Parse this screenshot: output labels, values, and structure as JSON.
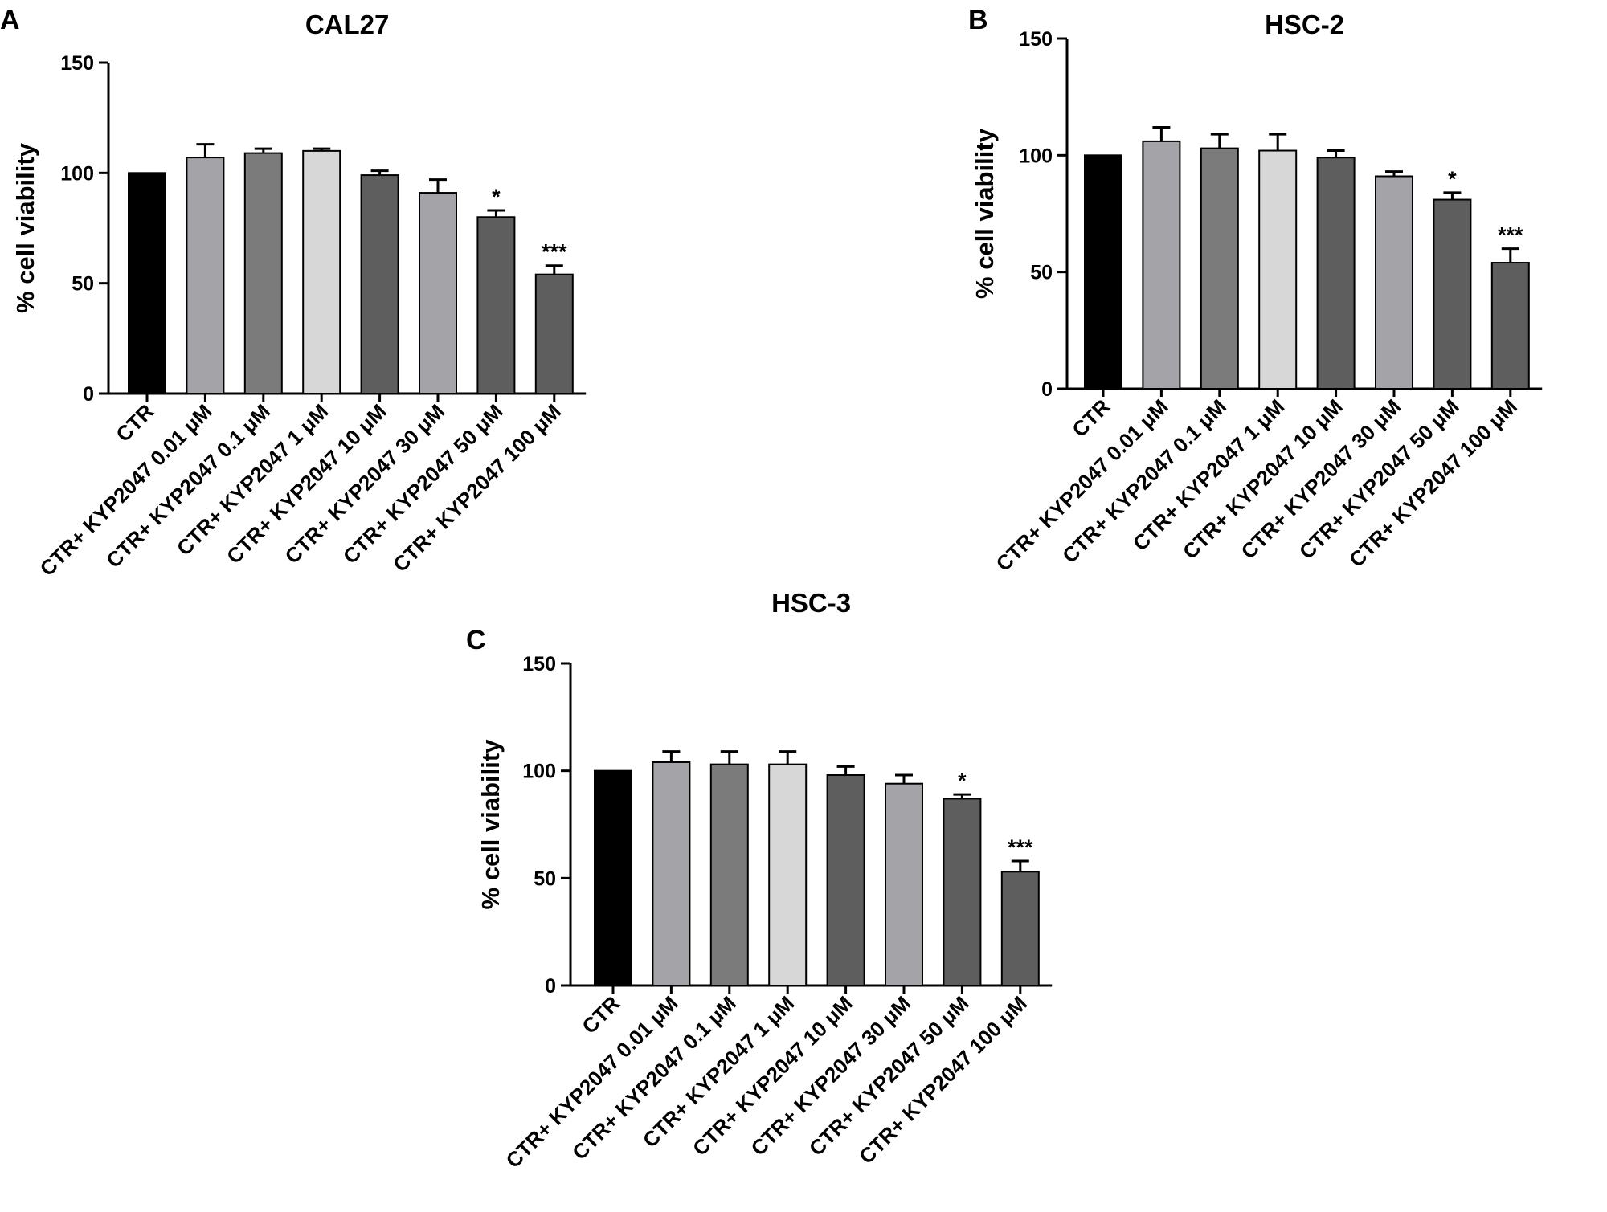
{
  "chart_data": [
    {
      "panel": "A",
      "type": "bar",
      "title": "CAL27",
      "ylabel": "% cell viability",
      "xlabel": "",
      "ylim": [
        0,
        150
      ],
      "yticks": [
        "0",
        "50",
        "100",
        "150"
      ],
      "categories": [
        "CTR",
        "CTR+ KYP2047 0.01 μM",
        "CTR+ KYP2047 0.1 μM",
        "CTR+ KYP2047 1 μM",
        "CTR+ KYP2047 10 μM",
        "CTR+ KYP2047 30 μM",
        "CTR+ KYP2047 50 μM",
        "CTR+ KYP2047 100 μM"
      ],
      "values": [
        100,
        107,
        109,
        110,
        99,
        91,
        80,
        54
      ],
      "errors": [
        0,
        6,
        2,
        1,
        2,
        6,
        3,
        4
      ],
      "significance": [
        "",
        "",
        "",
        "",
        "",
        "",
        "*",
        "***"
      ],
      "bar_colors": [
        "#000000",
        "#a3a3a8",
        "#7b7b7b",
        "#d7d7d7",
        "#5e5e5e",
        "#a3a3a8",
        "#5e5e5e",
        "#5e5e5e"
      ]
    },
    {
      "panel": "B",
      "type": "bar",
      "title": "HSC-2",
      "ylabel": "% cell viability",
      "xlabel": "",
      "ylim": [
        0,
        150
      ],
      "yticks": [
        "0",
        "50",
        "100",
        "150"
      ],
      "categories": [
        "CTR",
        "CTR+ KYP2047 0.01 μM",
        "CTR+ KYP2047 0.1 μM",
        "CTR+ KYP2047 1 μM",
        "CTR+ KYP2047 10 μM",
        "CTR+ KYP2047 30 μM",
        "CTR+ KYP2047 50 μM",
        "CTR+ KYP2047 100 μM"
      ],
      "values": [
        100,
        106,
        103,
        102,
        99,
        91,
        81,
        54
      ],
      "errors": [
        0,
        6,
        6,
        7,
        3,
        2,
        3,
        6
      ],
      "significance": [
        "",
        "",
        "",
        "",
        "",
        "",
        "*",
        "***"
      ],
      "bar_colors": [
        "#000000",
        "#a3a3a8",
        "#7b7b7b",
        "#d7d7d7",
        "#5e5e5e",
        "#a3a3a8",
        "#5e5e5e",
        "#5e5e5e"
      ]
    },
    {
      "panel": "C",
      "type": "bar",
      "title": "HSC-3",
      "ylabel": "% cell viability",
      "xlabel": "",
      "ylim": [
        0,
        150
      ],
      "yticks": [
        "0",
        "50",
        "100",
        "150"
      ],
      "categories": [
        "CTR",
        "CTR+ KYP2047 0.01 μM",
        "CTR+ KYP2047 0.1 μM",
        "CTR+ KYP2047 1 μM",
        "CTR+ KYP2047 10 μM",
        "CTR+ KYP2047 30 μM",
        "CTR+ KYP2047 50 μM",
        "CTR+ KYP2047 100 μM"
      ],
      "values": [
        100,
        104,
        103,
        103,
        98,
        94,
        87,
        53
      ],
      "errors": [
        0,
        5,
        6,
        6,
        4,
        4,
        2,
        5
      ],
      "significance": [
        "",
        "",
        "",
        "",
        "",
        "",
        "*",
        "***"
      ],
      "bar_colors": [
        "#000000",
        "#a3a3a8",
        "#7b7b7b",
        "#d7d7d7",
        "#5e5e5e",
        "#a3a3a8",
        "#5e5e5e",
        "#5e5e5e"
      ]
    }
  ]
}
